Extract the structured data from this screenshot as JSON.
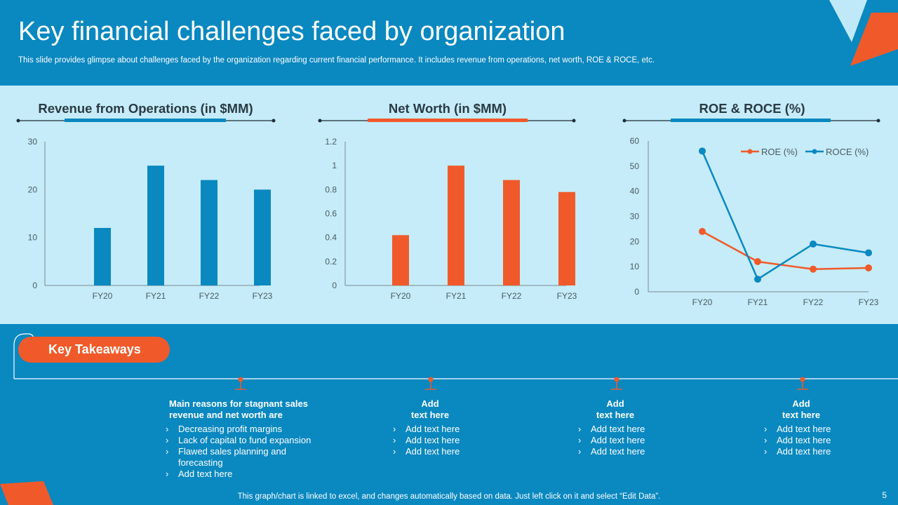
{
  "header": {
    "title": "Key financial challenges faced by organization",
    "subtitle": "This slide provides glimpse about challenges faced by the organization regarding current financial performance. It includes revenue from operations, net worth, ROE & ROCE, etc."
  },
  "colors": {
    "blue": "#0a88c0",
    "orange": "#f05a2a",
    "band": "#c5ecf8",
    "dark_text": "#2a3a44"
  },
  "chart_data": [
    {
      "type": "bar",
      "title": "Revenue from Operations (in $MM)",
      "categories": [
        "FY20",
        "FY21",
        "FY22",
        "FY23"
      ],
      "values": [
        12,
        25,
        22,
        20
      ],
      "ylim": [
        0,
        30
      ],
      "yticks": [
        "0",
        "10",
        "20",
        "30"
      ],
      "color": "#0a88c0",
      "grid": false
    },
    {
      "type": "bar",
      "title": "Net Worth (in $MM)",
      "categories": [
        "FY20",
        "FY21",
        "FY22",
        "FY23"
      ],
      "values": [
        0.42,
        1.0,
        0.88,
        0.78
      ],
      "ylim": [
        0,
        1.2
      ],
      "yticks": [
        "0",
        "0.2",
        "0.4",
        "0.6",
        "0.8",
        "1",
        "1.2"
      ],
      "color": "#f05a2a",
      "grid": false
    },
    {
      "type": "line",
      "title": "ROE & ROCE (%)",
      "categories": [
        "FY20",
        "FY21",
        "FY22",
        "FY23"
      ],
      "series": [
        {
          "name": "ROE (%)",
          "values": [
            24,
            12,
            9,
            9.5
          ],
          "color": "#f05a2a"
        },
        {
          "name": "ROCE (%)",
          "values": [
            56,
            5,
            19,
            15.5
          ],
          "color": "#0a88c0"
        }
      ],
      "ylim": [
        0,
        60
      ],
      "yticks": [
        "0",
        "10",
        "20",
        "30",
        "40",
        "50",
        "60"
      ],
      "legend": "top-right",
      "grid": false
    }
  ],
  "takeaways": {
    "label": "Key Takeaways",
    "columns": [
      {
        "heading": "Main reasons for stagnant sales revenue and net worth are",
        "items": [
          "Decreasing profit margins",
          "Lack of capital to fund expansion",
          "Flawed sales planning and forecasting",
          "Add text here"
        ]
      },
      {
        "heading_line1": "Add",
        "heading_line2": "text here",
        "items": [
          "Add text here",
          "Add text here",
          "Add text here"
        ]
      },
      {
        "heading_line1": "Add",
        "heading_line2": "text here",
        "items": [
          "Add text here",
          "Add text here",
          "Add text here"
        ]
      },
      {
        "heading_line1": "Add",
        "heading_line2": "text here",
        "items": [
          "Add text here",
          "Add text here",
          "Add text here"
        ]
      }
    ]
  },
  "footer": {
    "note": "This graph/chart is linked to excel, and changes automatically based on data. Just left click on it and select “Edit Data”.",
    "page_number": "5"
  }
}
